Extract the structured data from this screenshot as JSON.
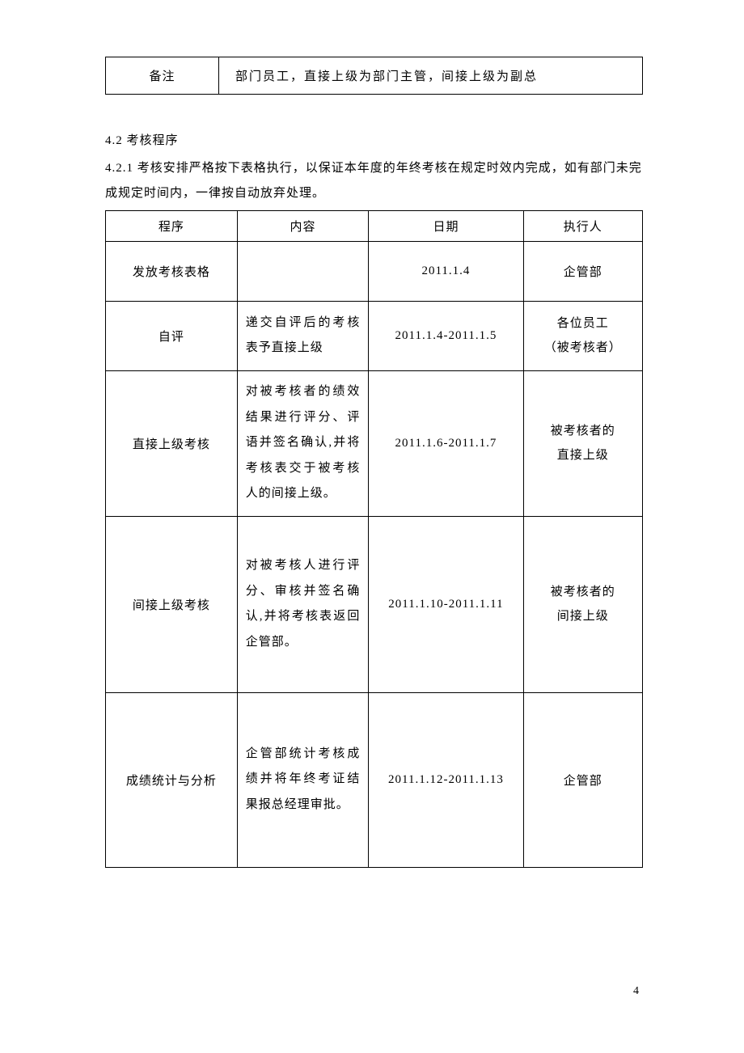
{
  "table1": {
    "label": "备注",
    "value": "部门员工，直接上级为部门主管，间接上级为副总"
  },
  "section": {
    "heading": "4.2 考核程序",
    "para": "4.2.1 考核安排严格按下表格执行，以保证本年度的年终考核在规定时效内完成，如有部门未完成规定时间内，一律按自动放弃处理。"
  },
  "table2": {
    "headers": [
      "程序",
      "内容",
      "日期",
      "执行人"
    ],
    "rows": [
      {
        "procedure": "发放考核表格",
        "content": "",
        "date": "2011.1.4",
        "executor": "企管部"
      },
      {
        "procedure": "自评",
        "content": "递交自评后的考核表予直接上级",
        "date": "2011.1.4-2011.1.5",
        "executor_line1": "各位员工",
        "executor_line2": "（被考核者）"
      },
      {
        "procedure": "直接上级考核",
        "content": "对被考核者的绩效结果进行评分、评语并签名确认,并将考核表交于被考核人的间接上级。",
        "date": "2011.1.6-2011.1.7",
        "executor_line1": "被考核者的",
        "executor_line2": "直接上级"
      },
      {
        "procedure": "间接上级考核",
        "content": "对被考核人进行评分、审核并签名确认,并将考核表返回企管部。",
        "date": "2011.1.10-2011.1.11",
        "executor_line1": "被考核者的",
        "executor_line2": "间接上级"
      },
      {
        "procedure": "成绩统计与分析",
        "content": "企管部统计考核成绩并将年终考证结果报总经理审批。",
        "date": "2011.1.12-2011.1.13",
        "executor": "企管部"
      }
    ]
  },
  "page_number": "4",
  "colors": {
    "text": "#000000",
    "background": "#ffffff",
    "border": "#000000"
  },
  "typography": {
    "body_fontsize": 15,
    "page_number_fontsize": 14,
    "line_height": 2.1
  }
}
